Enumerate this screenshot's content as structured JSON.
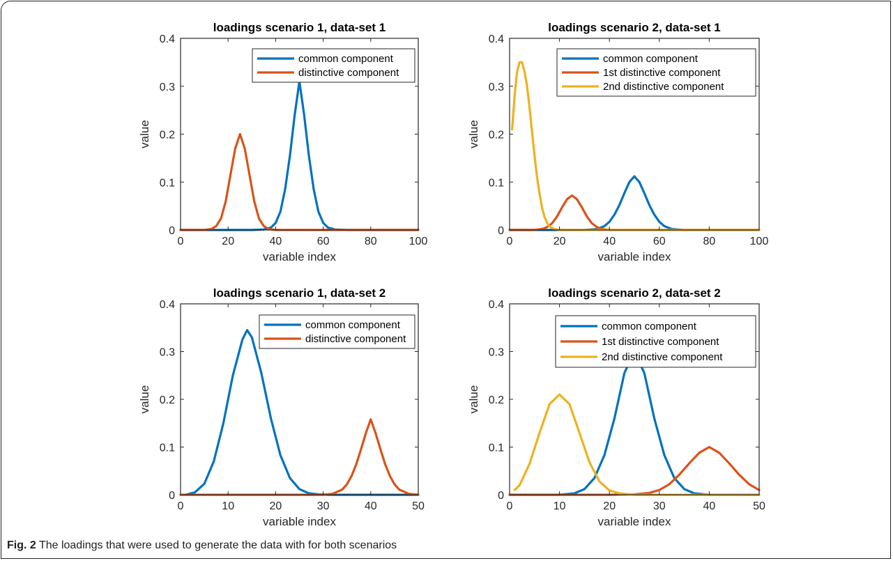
{
  "caption": {
    "label": "Fig. 2",
    "text": "The loadings that were used to generate the data with for both scenarios"
  },
  "colors": {
    "common": "#0072BD",
    "distinctive1": "#D95319",
    "distinctive2": "#EDB120"
  },
  "chart_data": [
    {
      "type": "line",
      "title": "loadings scenario 1, data-set 1",
      "xlabel": "variable index",
      "ylabel": "value",
      "xlim": [
        0,
        100
      ],
      "ylim": [
        0,
        0.4
      ],
      "xticks": [
        "0",
        "20",
        "40",
        "60",
        "80",
        "100"
      ],
      "yticks": [
        "0",
        "0.1",
        "0.2",
        "0.3",
        "0.4"
      ],
      "legend_position": "top-right",
      "series": [
        {
          "name": "common component",
          "color": "#0072BD",
          "x": [
            0,
            10,
            20,
            30,
            35,
            38,
            40,
            42,
            44,
            46,
            48,
            50,
            52,
            54,
            56,
            58,
            60,
            62,
            65,
            70,
            80,
            90,
            100
          ],
          "values": [
            0,
            0,
            0,
            0,
            0.001,
            0.005,
            0.015,
            0.038,
            0.085,
            0.155,
            0.24,
            0.31,
            0.24,
            0.155,
            0.085,
            0.038,
            0.015,
            0.005,
            0.001,
            0,
            0,
            0,
            0
          ]
        },
        {
          "name": "distinctive component",
          "color": "#D95319",
          "x": [
            0,
            5,
            10,
            13,
            15,
            17,
            19,
            21,
            23,
            25,
            27,
            29,
            31,
            33,
            35,
            37,
            40,
            45,
            50,
            60,
            80,
            100
          ],
          "values": [
            0,
            0,
            0,
            0.002,
            0.008,
            0.024,
            0.06,
            0.115,
            0.17,
            0.2,
            0.17,
            0.115,
            0.06,
            0.024,
            0.008,
            0.002,
            0,
            0,
            0,
            0,
            0,
            0
          ]
        }
      ]
    },
    {
      "type": "line",
      "title": "loadings scenario 2, data-set 1",
      "xlabel": "variable index",
      "ylabel": "value",
      "xlim": [
        0,
        100
      ],
      "ylim": [
        0,
        0.4
      ],
      "xticks": [
        "0",
        "20",
        "40",
        "60",
        "80",
        "100"
      ],
      "yticks": [
        "0",
        "0.1",
        "0.2",
        "0.3",
        "0.4"
      ],
      "legend_position": "top-right",
      "series": [
        {
          "name": "common component",
          "color": "#0072BD",
          "x": [
            0,
            20,
            30,
            35,
            38,
            40,
            42,
            44,
            46,
            48,
            50,
            52,
            54,
            56,
            58,
            60,
            62,
            65,
            70,
            80,
            100
          ],
          "values": [
            0,
            0,
            0,
            0.002,
            0.008,
            0.017,
            0.032,
            0.052,
            0.077,
            0.1,
            0.112,
            0.1,
            0.077,
            0.052,
            0.032,
            0.017,
            0.008,
            0.002,
            0,
            0,
            0
          ]
        },
        {
          "name": "1st distinctive component",
          "color": "#D95319",
          "x": [
            0,
            10,
            13,
            15,
            17,
            19,
            21,
            23,
            25,
            27,
            29,
            31,
            33,
            35,
            37,
            40,
            45,
            60,
            100
          ],
          "values": [
            0,
            0,
            0.002,
            0.006,
            0.014,
            0.028,
            0.047,
            0.064,
            0.072,
            0.064,
            0.047,
            0.028,
            0.014,
            0.006,
            0.002,
            0,
            0,
            0,
            0
          ]
        },
        {
          "name": "2nd distinctive component",
          "color": "#EDB120",
          "x": [
            1,
            2,
            3,
            4,
            5,
            6,
            7,
            8,
            9,
            10,
            11,
            12,
            13,
            14,
            15,
            16,
            18,
            20,
            25,
            30,
            50,
            100
          ],
          "values": [
            0.21,
            0.28,
            0.33,
            0.35,
            0.35,
            0.33,
            0.3,
            0.255,
            0.205,
            0.155,
            0.11,
            0.075,
            0.047,
            0.027,
            0.015,
            0.007,
            0.002,
            0,
            0,
            0,
            0,
            0
          ]
        }
      ]
    },
    {
      "type": "line",
      "title": "loadings scenario 1, data-set 2",
      "xlabel": "variable index",
      "ylabel": "value",
      "xlim": [
        0,
        50
      ],
      "ylim": [
        0,
        0.4
      ],
      "xticks": [
        "0",
        "10",
        "20",
        "30",
        "40",
        "50"
      ],
      "yticks": [
        "0",
        "0.1",
        "0.2",
        "0.3",
        "0.4"
      ],
      "legend_position": "top-right",
      "series": [
        {
          "name": "common component",
          "color": "#0072BD",
          "x": [
            1,
            3,
            5,
            7,
            9,
            11,
            13,
            14,
            15,
            17,
            19,
            21,
            23,
            25,
            27,
            29,
            31,
            35,
            40,
            45,
            50
          ],
          "values": [
            0,
            0.005,
            0.023,
            0.07,
            0.15,
            0.25,
            0.325,
            0.345,
            0.33,
            0.255,
            0.16,
            0.083,
            0.035,
            0.012,
            0.003,
            0.001,
            0,
            0,
            0,
            0,
            0
          ]
        },
        {
          "name": "distinctive component",
          "color": "#D95319",
          "x": [
            0,
            10,
            20,
            30,
            32,
            34,
            35,
            36,
            37,
            38,
            39,
            40,
            41,
            42,
            43,
            44,
            45,
            46,
            48,
            50
          ],
          "values": [
            0,
            0,
            0,
            0,
            0.002,
            0.011,
            0.022,
            0.04,
            0.065,
            0.097,
            0.13,
            0.158,
            0.13,
            0.097,
            0.065,
            0.04,
            0.022,
            0.011,
            0.002,
            0
          ]
        }
      ]
    },
    {
      "type": "line",
      "title": "loadings scenario 2, data-set 2",
      "xlabel": "variable index",
      "ylabel": "value",
      "xlim": [
        0,
        50
      ],
      "ylim": [
        0,
        0.4
      ],
      "xticks": [
        "0",
        "10",
        "20",
        "30",
        "40",
        "50"
      ],
      "yticks": [
        "0",
        "0.1",
        "0.2",
        "0.3",
        "0.4"
      ],
      "legend_position": "top-right",
      "series": [
        {
          "name": "common component",
          "color": "#0072BD",
          "x": [
            0,
            10,
            13,
            15,
            17,
            19,
            21,
            23,
            25,
            27,
            29,
            31,
            33,
            35,
            37,
            40,
            45,
            50
          ],
          "values": [
            0,
            0,
            0.003,
            0.012,
            0.035,
            0.083,
            0.16,
            0.255,
            0.3,
            0.255,
            0.16,
            0.083,
            0.035,
            0.012,
            0.003,
            0,
            0,
            0
          ]
        },
        {
          "name": "1st distinctive component",
          "color": "#D95319",
          "x": [
            0,
            20,
            25,
            28,
            30,
            32,
            34,
            36,
            38,
            40,
            42,
            44,
            46,
            48,
            50
          ],
          "values": [
            0,
            0,
            0.001,
            0.004,
            0.01,
            0.022,
            0.042,
            0.066,
            0.088,
            0.1,
            0.088,
            0.066,
            0.042,
            0.022,
            0.01
          ]
        },
        {
          "name": "2nd distinctive component",
          "color": "#EDB120",
          "x": [
            1,
            2,
            4,
            6,
            8,
            10,
            12,
            14,
            16,
            18,
            20,
            22,
            25,
            30,
            35,
            40,
            50
          ],
          "values": [
            0.01,
            0.02,
            0.065,
            0.13,
            0.19,
            0.21,
            0.19,
            0.13,
            0.068,
            0.028,
            0.009,
            0.003,
            0,
            0,
            0,
            0,
            0
          ]
        }
      ]
    }
  ]
}
